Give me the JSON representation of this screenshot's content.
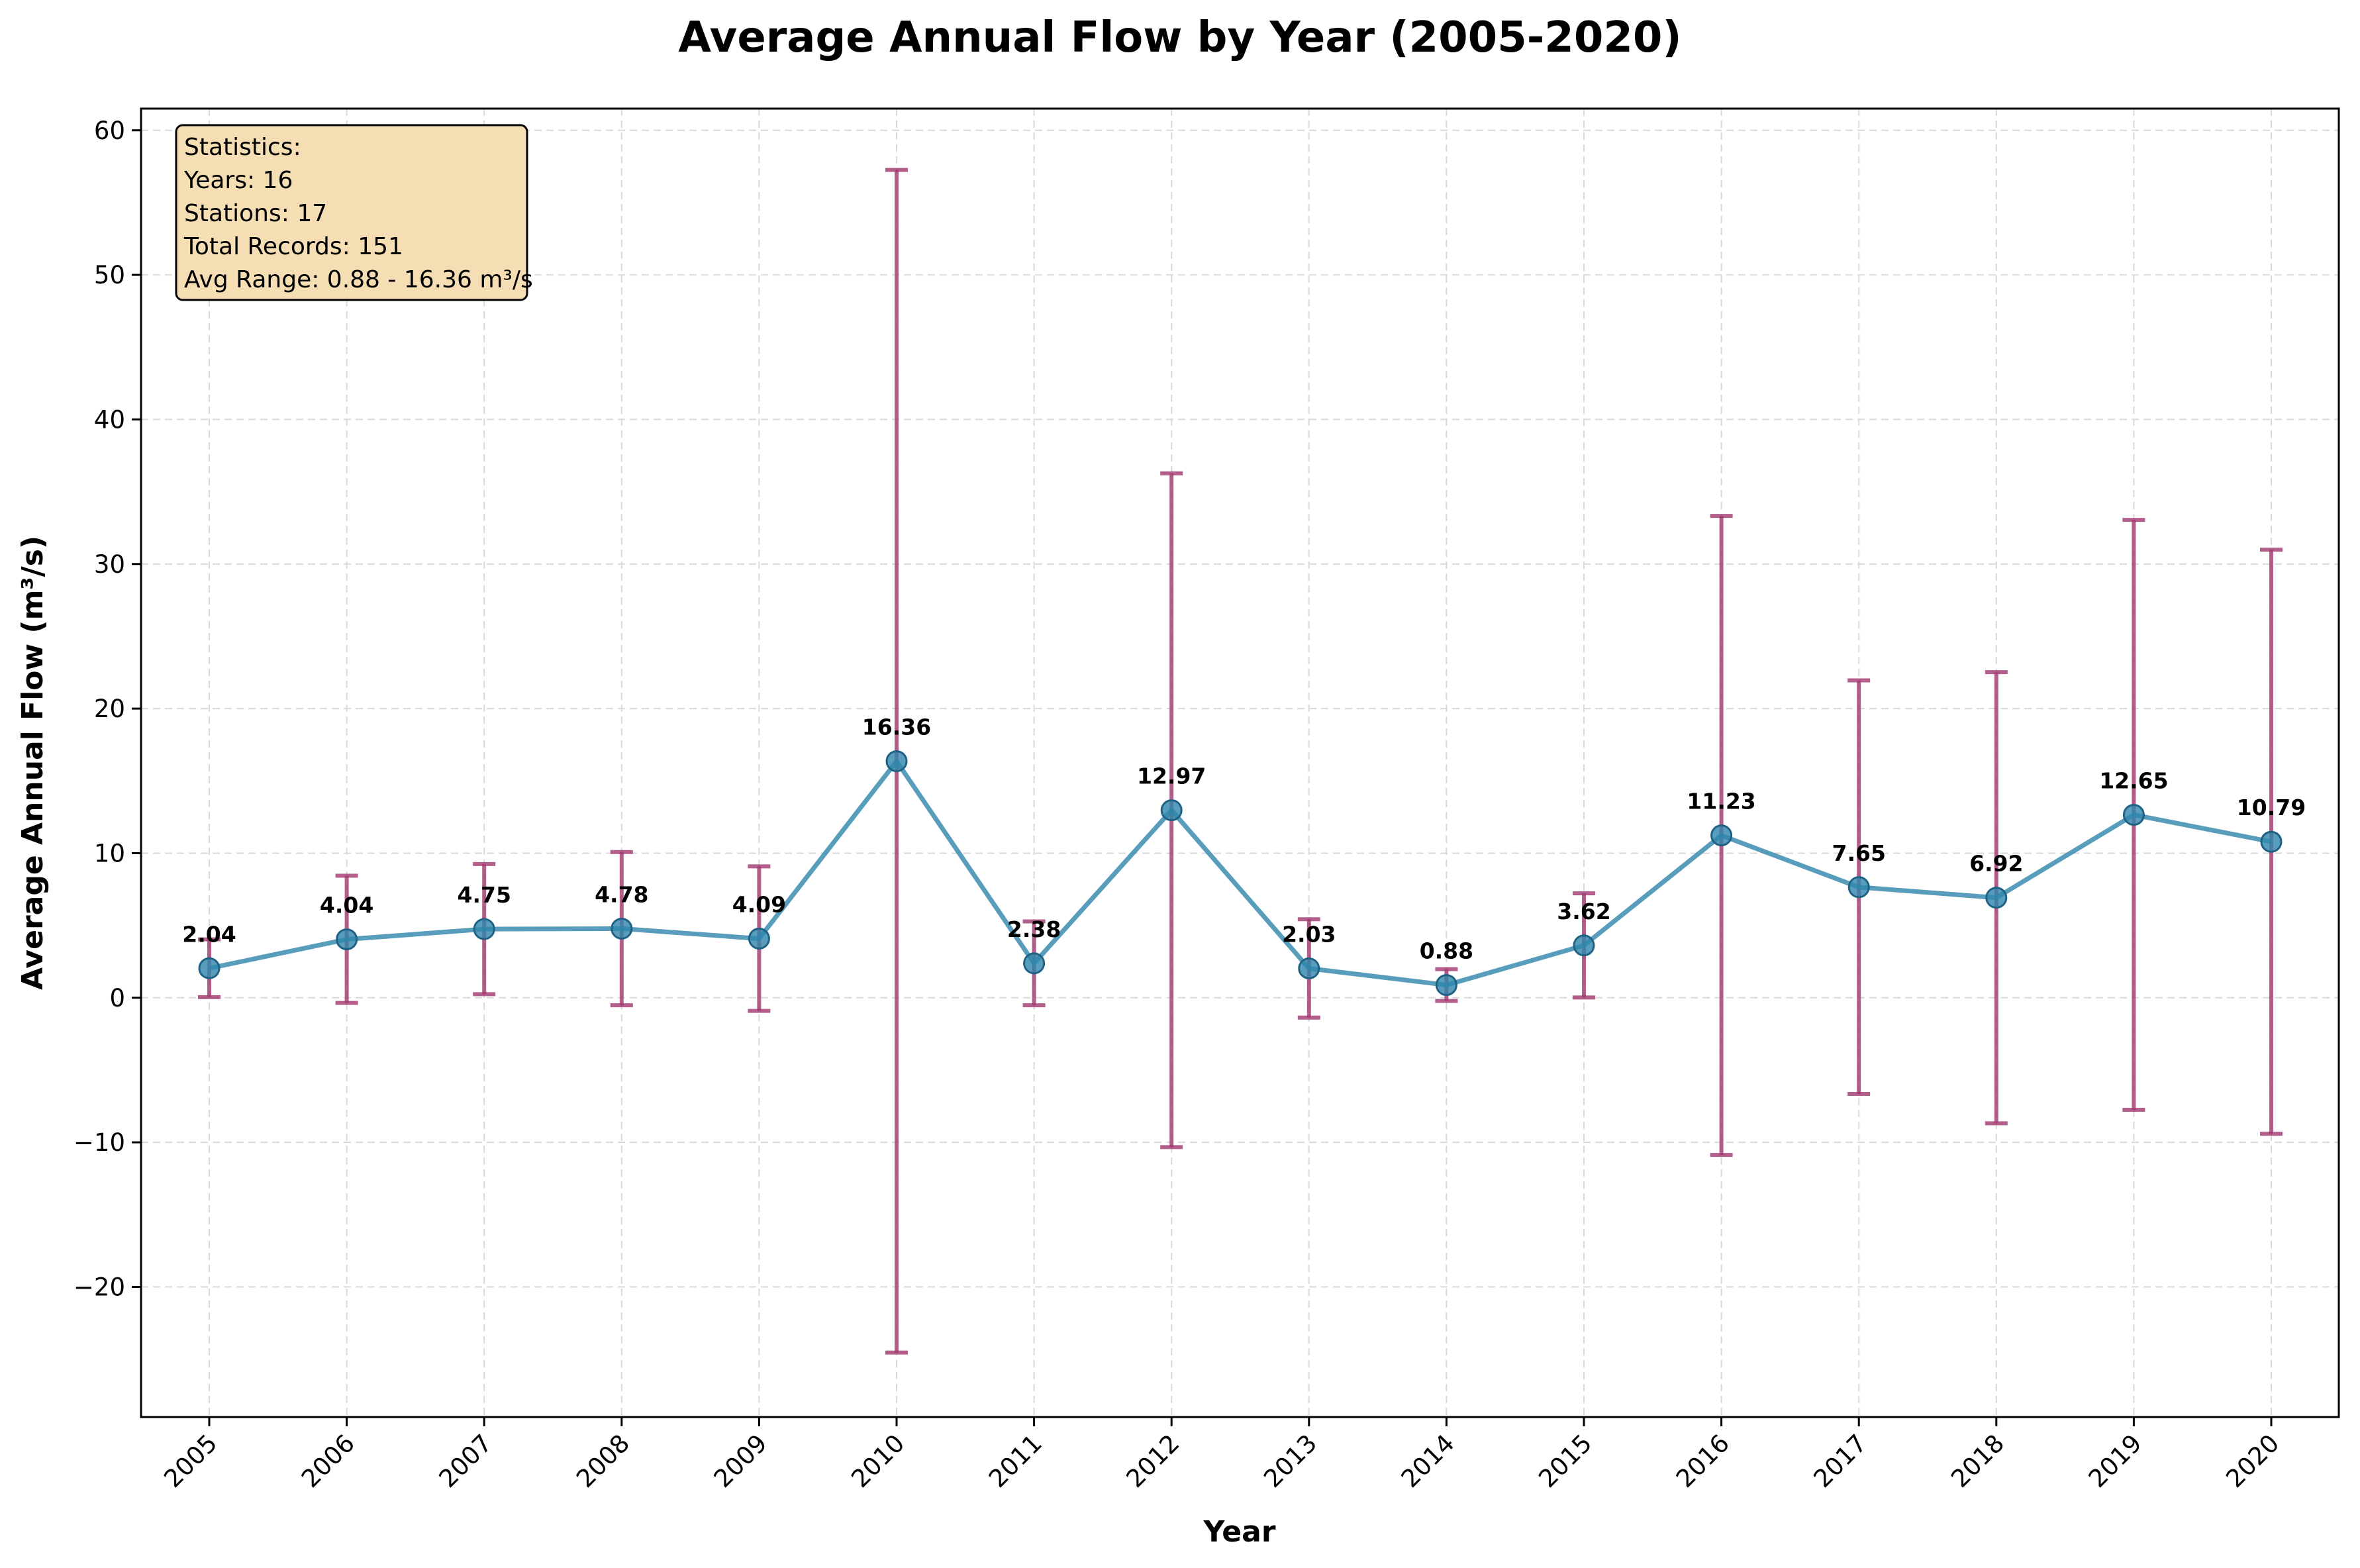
{
  "chart_data": {
    "type": "line",
    "title": "Average Annual Flow by Year (2005-2020)",
    "xlabel": "Year",
    "ylabel": "Average Annual Flow (m³/s)",
    "ylim": [
      -29,
      61.5
    ],
    "yticks": [
      -20,
      -10,
      0,
      10,
      20,
      30,
      40,
      50,
      60
    ],
    "ytick_labels": [
      "−20",
      "−10",
      "0",
      "10",
      "20",
      "30",
      "40",
      "50",
      "60"
    ],
    "grid": true,
    "categories": [
      "2005",
      "2006",
      "2007",
      "2008",
      "2009",
      "2010",
      "2011",
      "2012",
      "2013",
      "2014",
      "2015",
      "2016",
      "2017",
      "2018",
      "2019",
      "2020"
    ],
    "values": [
      2.04,
      4.04,
      4.75,
      4.78,
      4.09,
      16.36,
      2.38,
      12.97,
      2.03,
      0.88,
      3.62,
      11.23,
      7.65,
      6.92,
      12.65,
      10.79
    ],
    "value_labels": [
      "2.04",
      "4.04",
      "4.75",
      "4.78",
      "4.09",
      "16.36",
      "2.38",
      "12.97",
      "2.03",
      "0.88",
      "3.62",
      "11.23",
      "7.65",
      "6.92",
      "12.65",
      "10.79"
    ],
    "error": [
      2.0,
      4.4,
      4.5,
      5.3,
      5.0,
      40.9,
      2.9,
      23.3,
      3.4,
      1.1,
      3.6,
      22.1,
      14.3,
      15.6,
      20.4,
      20.2
    ],
    "line_color": "#2E86AB",
    "error_color": "#A23B72",
    "stats_box": {
      "lines": [
        "Statistics:",
        "Years: 16",
        "Stations: 17",
        "Total Records: 151",
        "Avg Range: 0.88 - 16.36 m³/s"
      ],
      "position": "top-left",
      "background": "#F5DEB3"
    }
  }
}
